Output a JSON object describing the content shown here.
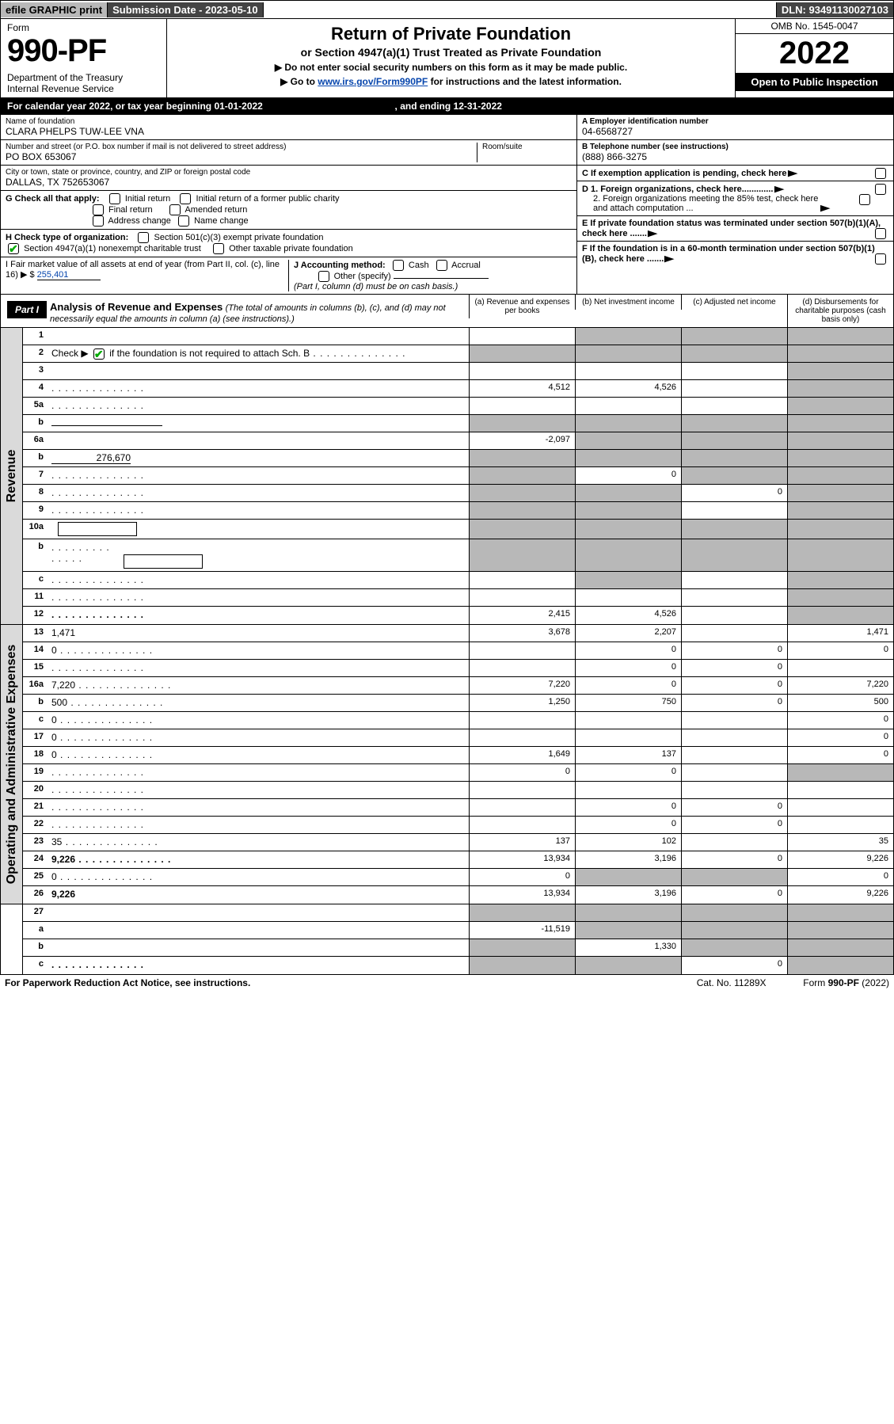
{
  "colors": {
    "link": "#0645ad",
    "grey_bg": "#b8b8b8",
    "dark_bg": "#444444",
    "side_bg": "#dadada",
    "check_green": "#00aa00"
  },
  "topbar": {
    "efile": "efile GRAPHIC print",
    "submission": "Submission Date - 2023-05-10",
    "dln": "DLN: 93491130027103"
  },
  "header": {
    "form_label": "Form",
    "form_num": "990-PF",
    "dept": "Department of the Treasury\nInternal Revenue Service",
    "title": "Return of Private Foundation",
    "subtitle": "or Section 4947(a)(1) Trust Treated as Private Foundation",
    "note1": "▶ Do not enter social security numbers on this form as it may be made public.",
    "note2_pre": "▶ Go to ",
    "note2_link": "www.irs.gov/Form990PF",
    "note2_post": " for instructions and the latest information.",
    "omb": "OMB No. 1545-0047",
    "year": "2022",
    "open": "Open to Public Inspection"
  },
  "calendar": {
    "text_pre": "For calendar year 2022, or tax year beginning ",
    "begin": "01-01-2022",
    "mid": " , and ending ",
    "end": "12-31-2022"
  },
  "entity": {
    "name_lbl": "Name of foundation",
    "name": "CLARA PHELPS TUW-LEE VNA",
    "addr_lbl": "Number and street (or P.O. box number if mail is not delivered to street address)",
    "addr": "PO BOX 653067",
    "room_lbl": "Room/suite",
    "city_lbl": "City or town, state or province, country, and ZIP or foreign postal code",
    "city": "DALLAS, TX  752653067",
    "a_lbl": "A Employer identification number",
    "a_val": "04-6568727",
    "b_lbl": "B Telephone number (see instructions)",
    "b_val": "(888) 866-3275",
    "c_lbl": "C If exemption application is pending, check here",
    "d1_lbl": "D 1. Foreign organizations, check here.............",
    "d2_lbl": "2. Foreign organizations meeting the 85% test, check here and attach computation ...",
    "e_lbl": "E  If private foundation status was terminated under section 507(b)(1)(A), check here .......",
    "f_lbl": "F  If the foundation is in a 60-month termination under section 507(b)(1)(B), check here .......",
    "g_lbl": "G Check all that apply:",
    "g_opts": [
      "Initial return",
      "Initial return of a former public charity",
      "Final return",
      "Amended return",
      "Address change",
      "Name change"
    ],
    "h_lbl": "H Check type of organization:",
    "h_opt1": "Section 501(c)(3) exempt private foundation",
    "h_opt2": "Section 4947(a)(1) nonexempt charitable trust",
    "h_opt3": "Other taxable private foundation",
    "i_lbl": "I Fair market value of all assets at end of year (from Part II, col. (c), line 16) ▶ $",
    "i_val": "255,401",
    "j_lbl": "J Accounting method:",
    "j_opt1": "Cash",
    "j_opt2": "Accrual",
    "j_opt3": "Other (specify)",
    "j_note": "(Part I, column (d) must be on cash basis.)"
  },
  "part1": {
    "label": "Part I",
    "title": "Analysis of Revenue and Expenses",
    "desc": "(The total of amounts in columns (b), (c), and (d) may not necessarily equal the amounts in column (a) (see instructions).)",
    "col_a": "(a)  Revenue and expenses per books",
    "col_b": "(b)  Net investment income",
    "col_c": "(c)  Adjusted net income",
    "col_d": "(d)  Disbursements for charitable purposes (cash basis only)"
  },
  "sections": {
    "revenue": "Revenue",
    "expenses": "Operating and Administrative Expenses"
  },
  "rows": {
    "r1": {
      "n": "1",
      "d": "",
      "a": "",
      "b": "",
      "c": "",
      "grey": [
        "b",
        "c",
        "d"
      ]
    },
    "r2": {
      "n": "2",
      "d_pre": "Check ▶ ",
      "d_post": " if the foundation is not required to attach Sch. B",
      "checked": true,
      "a": "",
      "b": "",
      "c": "",
      "d": "",
      "grey": [
        "a",
        "b",
        "c",
        "d"
      ],
      "dots": true
    },
    "r3": {
      "n": "3",
      "d": "",
      "a": "",
      "b": "",
      "c": "",
      "grey": [
        "d"
      ]
    },
    "r4": {
      "n": "4",
      "d": "",
      "a": "4,512",
      "b": "4,526",
      "c": "",
      "grey": [
        "d"
      ],
      "dots": true
    },
    "r5a": {
      "n": "5a",
      "d": "",
      "a": "",
      "b": "",
      "c": "",
      "grey": [
        "d"
      ],
      "dots": true
    },
    "r5b": {
      "n": "b",
      "d": "",
      "line": true,
      "a": "",
      "b": "",
      "c": "",
      "grey": [
        "a",
        "b",
        "c",
        "d"
      ]
    },
    "r6a": {
      "n": "6a",
      "d": "",
      "a": "-2,097",
      "b": "",
      "c": "",
      "grey": [
        "b",
        "c",
        "d"
      ]
    },
    "r6b": {
      "n": "b",
      "d": "",
      "inline_val": "276,670",
      "a": "",
      "b": "",
      "c": "",
      "grey": [
        "a",
        "b",
        "c",
        "d"
      ]
    },
    "r7": {
      "n": "7",
      "d": "",
      "a": "",
      "b": "0",
      "c": "",
      "grey": [
        "a",
        "c",
        "d"
      ],
      "dots": true
    },
    "r8": {
      "n": "8",
      "d": "",
      "a": "",
      "b": "",
      "c": "0",
      "grey": [
        "a",
        "b",
        "d"
      ],
      "dots": true
    },
    "r9": {
      "n": "9",
      "d": "",
      "a": "",
      "b": "",
      "c": "",
      "grey": [
        "a",
        "b",
        "d"
      ],
      "dots": true
    },
    "r10a": {
      "n": "10a",
      "d": "",
      "box": true,
      "a": "",
      "b": "",
      "c": "",
      "grey": [
        "a",
        "b",
        "c",
        "d"
      ]
    },
    "r10b": {
      "n": "b",
      "d": "",
      "box": true,
      "a": "",
      "b": "",
      "c": "",
      "grey": [
        "a",
        "b",
        "c",
        "d"
      ],
      "dots": true
    },
    "r10c": {
      "n": "c",
      "d": "",
      "a": "",
      "b": "",
      "c": "",
      "grey": [
        "b",
        "d"
      ],
      "dots": true
    },
    "r11": {
      "n": "11",
      "d": "",
      "a": "",
      "b": "",
      "c": "",
      "grey": [
        "d"
      ],
      "dots": true
    },
    "r12": {
      "n": "12",
      "d": "",
      "bold": true,
      "a": "2,415",
      "b": "4,526",
      "c": "",
      "grey": [
        "d"
      ],
      "dots": true
    },
    "r13": {
      "n": "13",
      "d": "1,471",
      "a": "3,678",
      "b": "2,207",
      "c": ""
    },
    "r14": {
      "n": "14",
      "d": "0",
      "a": "",
      "b": "0",
      "c": "0",
      "dots": true
    },
    "r15": {
      "n": "15",
      "d": "",
      "a": "",
      "b": "0",
      "c": "0",
      "dots": true
    },
    "r16a": {
      "n": "16a",
      "d": "7,220",
      "a": "7,220",
      "b": "0",
      "c": "0",
      "dots": true
    },
    "r16b": {
      "n": "b",
      "d": "500",
      "a": "1,250",
      "b": "750",
      "c": "0",
      "dots": true
    },
    "r16c": {
      "n": "c",
      "d": "0",
      "a": "",
      "b": "",
      "c": "",
      "dots": true
    },
    "r17": {
      "n": "17",
      "d": "0",
      "a": "",
      "b": "",
      "c": "",
      "dots": true
    },
    "r18": {
      "n": "18",
      "d": "0",
      "a": "1,649",
      "b": "137",
      "c": "",
      "dots": true
    },
    "r19": {
      "n": "19",
      "d": "",
      "a": "0",
      "b": "0",
      "c": "",
      "grey": [
        "d"
      ],
      "dots": true
    },
    "r20": {
      "n": "20",
      "d": "",
      "a": "",
      "b": "",
      "c": "",
      "dots": true
    },
    "r21": {
      "n": "21",
      "d": "",
      "a": "",
      "b": "0",
      "c": "0",
      "dots": true
    },
    "r22": {
      "n": "22",
      "d": "",
      "a": "",
      "b": "0",
      "c": "0",
      "dots": true
    },
    "r23": {
      "n": "23",
      "d": "35",
      "a": "137",
      "b": "102",
      "c": "",
      "dots": true
    },
    "r24": {
      "n": "24",
      "d": "9,226",
      "bold": true,
      "a": "13,934",
      "b": "3,196",
      "c": "0",
      "dots": true
    },
    "r25": {
      "n": "25",
      "d": "0",
      "a": "0",
      "b": "",
      "c": "",
      "grey": [
        "b",
        "c"
      ],
      "dots": true
    },
    "r26": {
      "n": "26",
      "d": "9,226",
      "bold": true,
      "a": "13,934",
      "b": "3,196",
      "c": "0"
    },
    "r27": {
      "n": "27",
      "d": "",
      "a": "",
      "b": "",
      "c": "",
      "grey": [
        "a",
        "b",
        "c",
        "d"
      ]
    },
    "r27a": {
      "n": "a",
      "d": "",
      "bold": true,
      "a": "-11,519",
      "b": "",
      "c": "",
      "grey": [
        "b",
        "c",
        "d"
      ]
    },
    "r27b": {
      "n": "b",
      "d": "",
      "bold": true,
      "a": "",
      "b": "1,330",
      "c": "",
      "grey": [
        "a",
        "c",
        "d"
      ]
    },
    "r27c": {
      "n": "c",
      "d": "",
      "bold": true,
      "a": "",
      "b": "",
      "c": "0",
      "grey": [
        "a",
        "b",
        "d"
      ],
      "dots": true
    }
  },
  "footer": {
    "left": "For Paperwork Reduction Act Notice, see instructions.",
    "mid": "Cat. No. 11289X",
    "right": "Form 990-PF (2022)"
  }
}
